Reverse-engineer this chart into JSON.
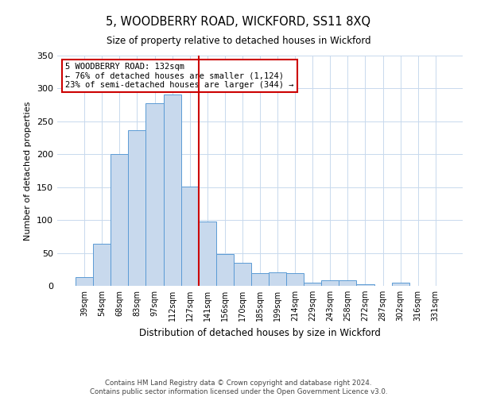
{
  "title": "5, WOODBERRY ROAD, WICKFORD, SS11 8XQ",
  "subtitle": "Size of property relative to detached houses in Wickford",
  "xlabel": "Distribution of detached houses by size in Wickford",
  "ylabel": "Number of detached properties",
  "bar_labels": [
    "39sqm",
    "54sqm",
    "68sqm",
    "83sqm",
    "97sqm",
    "112sqm",
    "127sqm",
    "141sqm",
    "156sqm",
    "170sqm",
    "185sqm",
    "199sqm",
    "214sqm",
    "229sqm",
    "243sqm",
    "258sqm",
    "272sqm",
    "287sqm",
    "302sqm",
    "316sqm",
    "331sqm"
  ],
  "bar_values": [
    13,
    64,
    200,
    237,
    278,
    291,
    151,
    98,
    48,
    35,
    19,
    20,
    19,
    5,
    8,
    8,
    3,
    0,
    5,
    0,
    0
  ],
  "bar_color": "#c8d9ed",
  "bar_edge_color": "#5b9bd5",
  "ylim": [
    0,
    350
  ],
  "yticks": [
    0,
    50,
    100,
    150,
    200,
    250,
    300,
    350
  ],
  "vline_index": 6.5,
  "vline_color": "#cc0000",
  "annotation_title": "5 WOODBERRY ROAD: 132sqm",
  "annotation_line1": "← 76% of detached houses are smaller (1,124)",
  "annotation_line2": "23% of semi-detached houses are larger (344) →",
  "annotation_box_color": "#cc0000",
  "footer_line1": "Contains HM Land Registry data © Crown copyright and database right 2024.",
  "footer_line2": "Contains public sector information licensed under the Open Government Licence v3.0.",
  "background_color": "#ffffff",
  "grid_color": "#c8d9ed"
}
